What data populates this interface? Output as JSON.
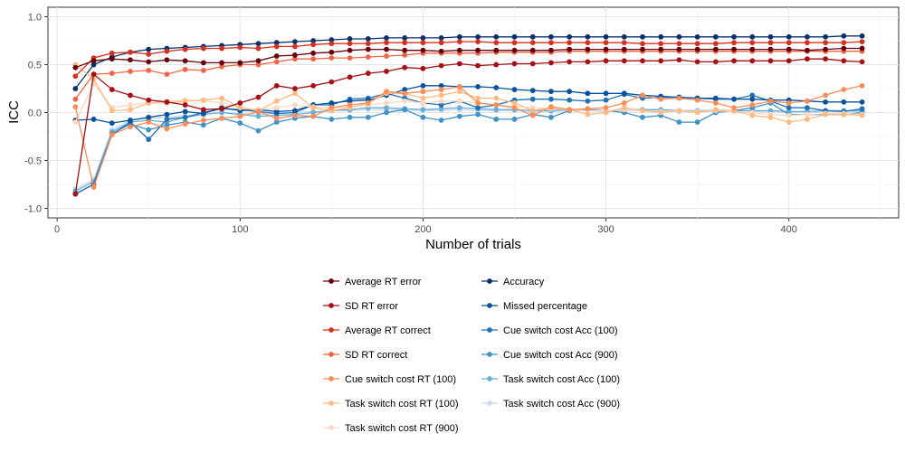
{
  "chart_data": {
    "type": "line",
    "xlabel": "Number of trials",
    "ylabel": "ICC",
    "xlim": [
      -5,
      460
    ],
    "ylim": [
      -1.1,
      1.1
    ],
    "x_ticks": [
      0,
      100,
      200,
      300,
      400
    ],
    "x_tick_labels": [
      "0",
      "100",
      "200",
      "300",
      "400"
    ],
    "y_ticks": [
      -1.0,
      -0.5,
      0.0,
      0.5,
      1.0
    ],
    "y_tick_labels": [
      "-1.0",
      "-0.5",
      "0.0",
      "0.5",
      "1.0"
    ],
    "grid": true,
    "legend_position": "bottom",
    "x": [
      10,
      20,
      30,
      40,
      50,
      60,
      70,
      80,
      90,
      100,
      110,
      120,
      130,
      140,
      150,
      160,
      170,
      180,
      190,
      200,
      210,
      220,
      230,
      240,
      250,
      260,
      270,
      280,
      290,
      300,
      310,
      320,
      330,
      340,
      350,
      360,
      370,
      380,
      390,
      400,
      410,
      420,
      430,
      440
    ],
    "series": [
      {
        "name": "Average RT error",
        "color": "#67000d",
        "values": [
          0.47,
          0.54,
          0.56,
          0.55,
          0.53,
          0.55,
          0.54,
          0.52,
          0.52,
          0.52,
          0.54,
          0.59,
          0.6,
          0.62,
          0.63,
          0.65,
          0.66,
          0.66,
          0.65,
          0.65,
          0.64,
          0.65,
          0.65,
          0.65,
          0.65,
          0.65,
          0.65,
          0.66,
          0.66,
          0.66,
          0.66,
          0.66,
          0.66,
          0.66,
          0.66,
          0.66,
          0.66,
          0.66,
          0.66,
          0.66,
          0.65,
          0.66,
          0.67,
          0.67
        ]
      },
      {
        "name": "SD RT error",
        "color": "#a50f15",
        "values": [
          -0.85,
          0.4,
          0.24,
          0.18,
          0.13,
          0.11,
          0.08,
          0.03,
          0.04,
          0.1,
          0.16,
          0.28,
          0.25,
          0.28,
          0.32,
          0.37,
          0.41,
          0.43,
          0.47,
          0.46,
          0.49,
          0.51,
          0.49,
          0.5,
          0.51,
          0.51,
          0.52,
          0.53,
          0.53,
          0.54,
          0.54,
          0.54,
          0.54,
          0.55,
          0.53,
          0.53,
          0.54,
          0.54,
          0.54,
          0.54,
          0.56,
          0.56,
          0.54,
          0.53
        ]
      },
      {
        "name": "Average RT correct",
        "color": "#d7301f",
        "values": [
          0.38,
          0.57,
          0.62,
          0.63,
          0.61,
          0.64,
          0.66,
          0.67,
          0.67,
          0.68,
          0.67,
          0.69,
          0.69,
          0.71,
          0.72,
          0.72,
          0.72,
          0.73,
          0.73,
          0.73,
          0.73,
          0.74,
          0.74,
          0.73,
          0.73,
          0.73,
          0.73,
          0.73,
          0.73,
          0.73,
          0.73,
          0.72,
          0.72,
          0.72,
          0.72,
          0.72,
          0.73,
          0.73,
          0.73,
          0.73,
          0.73,
          0.73,
          0.73,
          0.74
        ]
      },
      {
        "name": "SD RT correct",
        "color": "#ef6548",
        "values": [
          0.14,
          0.4,
          0.41,
          0.43,
          0.44,
          0.4,
          0.45,
          0.44,
          0.48,
          0.5,
          0.5,
          0.53,
          0.56,
          0.56,
          0.57,
          0.57,
          0.58,
          0.59,
          0.6,
          0.62,
          0.62,
          0.62,
          0.62,
          0.63,
          0.63,
          0.63,
          0.63,
          0.64,
          0.64,
          0.64,
          0.64,
          0.64,
          0.64,
          0.64,
          0.64,
          0.64,
          0.64,
          0.64,
          0.64,
          0.64,
          0.64,
          0.64,
          0.64,
          0.64
        ]
      },
      {
        "name": "Cue switch cost RT (100)",
        "color": "#fc8d59",
        "values": [
          0.06,
          -0.78,
          -0.23,
          -0.15,
          -0.1,
          -0.17,
          -0.12,
          -0.08,
          -0.06,
          -0.04,
          0.01,
          -0.06,
          -0.03,
          -0.04,
          0.05,
          0.08,
          0.1,
          0.22,
          0.2,
          0.22,
          0.24,
          0.27,
          0.1,
          0.08,
          0.05,
          -0.03,
          0.06,
          0.03,
          0.04,
          0.05,
          0.1,
          0.18,
          0.14,
          0.15,
          0.13,
          0.1,
          0.05,
          0.08,
          0.12,
          0.1,
          0.12,
          0.18,
          0.24,
          0.28
        ]
      },
      {
        "name": "Task switch cost RT (100)",
        "color": "#fdbb84",
        "values": [
          0.5,
          0.35,
          0.02,
          0.03,
          0.1,
          0.1,
          0.12,
          0.13,
          0.15,
          0.05,
          0.02,
          0.12,
          0.2,
          0.05,
          0.02,
          0.05,
          0.1,
          0.2,
          0.2,
          0.15,
          0.18,
          0.22,
          0.15,
          0.15,
          0.1,
          0.02,
          0.05,
          0.03,
          -0.02,
          0.0,
          0.05,
          0.02,
          0.0,
          0.02,
          0.0,
          0.03,
          0.02,
          -0.03,
          -0.05,
          -0.1,
          -0.07,
          -0.02,
          -0.02,
          -0.03
        ]
      },
      {
        "name": "Task switch cost RT (900)",
        "color": "#fdd9c2",
        "values": [
          -0.1,
          0.3,
          0.05,
          0.08,
          0.1,
          0.12,
          0.13,
          0.12,
          0.1,
          0.05,
          0.03,
          0.05,
          0.08,
          0.06,
          0.05,
          0.06,
          0.08,
          0.1,
          0.12,
          0.1,
          0.12,
          0.12,
          0.1,
          0.08,
          0.06,
          0.05,
          0.04,
          0.03,
          0.02,
          0.02,
          0.03,
          0.02,
          0.01,
          0.02,
          0.01,
          0.02,
          0.01,
          0.0,
          -0.02,
          -0.03,
          -0.02,
          -0.01,
          -0.01,
          -0.02
        ]
      },
      {
        "name": "Accuracy",
        "color": "#08306b",
        "values": [
          0.25,
          0.5,
          0.58,
          0.63,
          0.66,
          0.67,
          0.68,
          0.69,
          0.7,
          0.71,
          0.72,
          0.73,
          0.74,
          0.75,
          0.76,
          0.77,
          0.77,
          0.78,
          0.78,
          0.78,
          0.78,
          0.79,
          0.79,
          0.79,
          0.79,
          0.79,
          0.79,
          0.79,
          0.79,
          0.79,
          0.79,
          0.79,
          0.79,
          0.79,
          0.79,
          0.79,
          0.79,
          0.79,
          0.79,
          0.79,
          0.79,
          0.79,
          0.8,
          0.8
        ]
      },
      {
        "name": "Missed percentage",
        "color": "#08519c",
        "values": [
          -0.08,
          -0.07,
          -0.11,
          -0.08,
          -0.05,
          -0.02,
          0.01,
          -0.01,
          0.05,
          0.02,
          0.03,
          0.01,
          0.02,
          0.08,
          0.1,
          0.12,
          0.13,
          0.18,
          0.24,
          0.28,
          0.28,
          0.27,
          0.27,
          0.26,
          0.24,
          0.23,
          0.22,
          0.22,
          0.2,
          0.2,
          0.2,
          0.18,
          0.17,
          0.16,
          0.15,
          0.15,
          0.14,
          0.14,
          0.13,
          0.13,
          0.12,
          0.11,
          0.11,
          0.11
        ]
      },
      {
        "name": "Cue switch cost Acc (100)",
        "color": "#2171b5",
        "values": [
          -0.85,
          -0.75,
          -0.23,
          -0.1,
          -0.28,
          -0.07,
          -0.05,
          0.0,
          0.04,
          0.03,
          0.01,
          -0.01,
          0.0,
          0.08,
          0.08,
          0.14,
          0.15,
          0.2,
          0.15,
          0.1,
          0.08,
          0.12,
          0.05,
          0.08,
          0.13,
          0.14,
          0.14,
          0.13,
          0.12,
          0.13,
          0.19,
          0.15,
          0.16,
          0.16,
          0.15,
          0.14,
          0.14,
          0.18,
          0.12,
          0.05,
          0.05,
          0.02,
          0.01,
          0.04
        ]
      },
      {
        "name": "Cue switch cost Acc (900)",
        "color": "#4292c6",
        "values": [
          -0.85,
          -0.75,
          -0.22,
          -0.12,
          -0.18,
          -0.13,
          -0.1,
          -0.13,
          -0.06,
          -0.11,
          -0.19,
          -0.1,
          -0.06,
          -0.04,
          -0.07,
          -0.05,
          -0.05,
          0.0,
          0.03,
          -0.05,
          -0.08,
          -0.04,
          -0.02,
          -0.07,
          -0.07,
          -0.02,
          -0.05,
          0.02,
          0.03,
          0.02,
          0.0,
          -0.05,
          -0.03,
          -0.1,
          -0.1,
          0.0,
          0.02,
          0.05,
          0.1,
          -0.02,
          -0.02,
          -0.02,
          -0.02,
          0.0
        ]
      },
      {
        "name": "Task switch cost Acc (100)",
        "color": "#6baed6",
        "values": [
          -0.82,
          -0.72,
          -0.2,
          -0.1,
          -0.08,
          -0.1,
          -0.05,
          -0.02,
          0.0,
          -0.02,
          -0.04,
          -0.03,
          -0.02,
          0.0,
          0.02,
          0.03,
          0.05,
          0.05,
          0.04,
          0.03,
          0.04,
          0.05,
          0.04,
          0.03,
          0.03,
          0.02,
          0.02,
          0.03,
          0.03,
          0.02,
          0.03,
          0.03,
          0.03,
          0.02,
          0.02,
          0.02,
          0.02,
          0.02,
          0.02,
          0.01,
          0.01,
          0.02,
          0.02,
          0.02
        ]
      },
      {
        "name": "Task switch cost Acc (900)",
        "color": "#c6dbef",
        "values": [
          -0.8,
          -0.7,
          -0.18,
          -0.08,
          -0.06,
          -0.05,
          -0.03,
          -0.02,
          0.0,
          -0.01,
          -0.02,
          -0.01,
          0.0,
          0.01,
          0.02,
          0.02,
          0.03,
          0.03,
          0.03,
          0.02,
          0.02,
          0.03,
          0.02,
          0.02,
          0.02,
          0.01,
          0.01,
          0.02,
          0.02,
          0.01,
          0.02,
          0.02,
          0.02,
          0.01,
          0.01,
          0.01,
          0.01,
          0.01,
          0.01,
          0.0,
          0.0,
          0.01,
          0.01,
          0.01
        ]
      }
    ],
    "legend_columns": [
      [
        "Average RT error",
        "SD RT error",
        "Average RT correct",
        "SD RT correct",
        "Cue switch cost RT (100)",
        "Task switch cost RT (100)",
        "Task switch cost RT (900)"
      ],
      [
        "Accuracy",
        "Missed percentage",
        "Cue switch cost Acc (100)",
        "Cue switch cost Acc (900)",
        "Task switch cost Acc (100)",
        "Task switch cost Acc (900)"
      ]
    ]
  }
}
